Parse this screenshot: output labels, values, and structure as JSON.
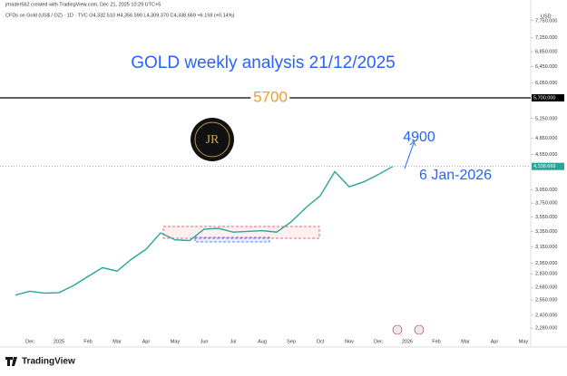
{
  "chart_data": {
    "type": "line",
    "header": "jrtrader562 created with TradingView.com, Dec 21, 2025 10:29 UTC+5",
    "symbol_line": "CFDs on Gold (US$ / OZ) · 1D · TVC  O4,332.510 H4,356.590 L4,309.370 C4,338.669 +6.159 (+0.14%)",
    "title": "GOLD weekly analysis 21/12/2025",
    "currency": "USD",
    "logo_text": "JR",
    "footer": "TradingView",
    "categories": [
      null,
      "Dec",
      null,
      "2025",
      null,
      "Feb",
      null,
      "Mar",
      null,
      "Apr",
      null,
      "May",
      null,
      "Jun",
      null,
      "Jul",
      null,
      "Aug",
      null,
      "Sep",
      null,
      "Oct",
      null,
      "Nov",
      null,
      "Dec",
      null,
      "2026",
      null,
      "Feb",
      null,
      "Mar",
      null,
      "Apr",
      null,
      "May"
    ],
    "series": [
      {
        "name": "Gold",
        "color": "#26a69a",
        "values": [
          2600,
          2640,
          2620,
          2625,
          2700,
          2800,
          2900,
          2860,
          3000,
          3120,
          3330,
          3240,
          3230,
          3380,
          3390,
          3340,
          3350,
          3360,
          3340,
          3480,
          3680,
          3860,
          4250,
          4000,
          4080,
          4200,
          4338.669,
          null,
          null,
          null,
          null,
          null,
          null,
          null,
          null,
          null
        ]
      }
    ],
    "log_scale": true,
    "ylim": [
      2200,
      8000
    ],
    "yticks": [
      {
        "value": 7750,
        "label": "7,750.000"
      },
      {
        "value": 7250,
        "label": "7,250.000"
      },
      {
        "value": 6850,
        "label": "6,850.000"
      },
      {
        "value": 6450,
        "label": "6,450.000"
      },
      {
        "value": 6050,
        "label": "6,050.000"
      },
      {
        "value": 5250,
        "label": "5,250.000"
      },
      {
        "value": 4850,
        "label": "4,850.000"
      },
      {
        "value": 4550,
        "label": "4,550.000"
      },
      {
        "value": 3950,
        "label": "3,950.000"
      },
      {
        "value": 3750,
        "label": "3,750.000"
      },
      {
        "value": 3550,
        "label": "3,550.000"
      },
      {
        "value": 3350,
        "label": "3,350.000"
      },
      {
        "value": 3150,
        "label": "3,150.000"
      },
      {
        "value": 2950,
        "label": "2,950.000"
      },
      {
        "value": 2830,
        "label": "2,830.000"
      },
      {
        "value": 2680,
        "label": "2,680.000"
      },
      {
        "value": 2550,
        "label": "2,550.000"
      },
      {
        "value": 2400,
        "label": "2,400.000"
      },
      {
        "value": 2280,
        "label": "2,280.000"
      }
    ],
    "level": {
      "value": 5700,
      "label": "5,700.000",
      "text": "5700",
      "color": "#f59a23"
    },
    "current_price": {
      "value": 4338.669,
      "label": "4,338.669"
    },
    "target_text": "4900",
    "date_text": "6 Jan-2026"
  }
}
